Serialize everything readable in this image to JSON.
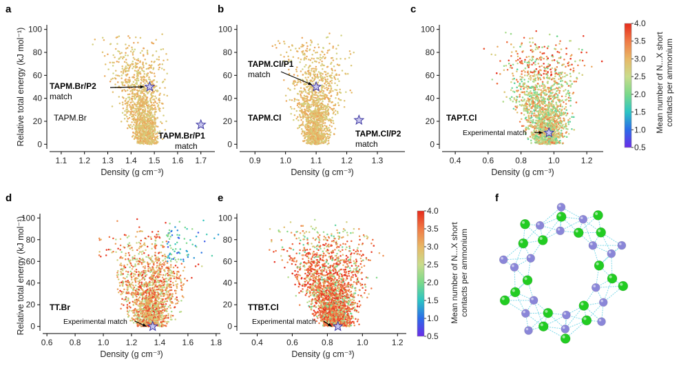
{
  "figure": {
    "panel_letters": [
      "a",
      "b",
      "c",
      "d",
      "e",
      "f"
    ],
    "colorbar": {
      "label_line1": "Mean number of N...X short",
      "label_line2": "contacts per ammonium",
      "ticks": [
        "4.0",
        "3.5",
        "3.0",
        "2.5",
        "2.0",
        "1.5",
        "1.0",
        "0.5"
      ],
      "min": 0.5,
      "max": 4.0,
      "colors": [
        "#6a2ce8",
        "#2c6be8",
        "#2cc4c4",
        "#7ad98a",
        "#c9dc8c",
        "#e8b866",
        "#f07a45",
        "#e62b1c"
      ]
    },
    "molecule_colors": {
      "green": "#22cc22",
      "purple": "#8a86d8",
      "bond": "#7ad8e8"
    }
  },
  "chart_data": [
    {
      "panel": "a",
      "type": "scatter",
      "title": "TAPM.Br",
      "xlabel": "Density (g cm⁻³)",
      "ylabel": "Relative total energy (kJ mol⁻¹)",
      "xlim": [
        1.05,
        1.76
      ],
      "ylim": [
        -4,
        104
      ],
      "xticks": [
        1.1,
        1.2,
        1.3,
        1.4,
        1.5,
        1.6,
        1.7
      ],
      "xtick_labels": [
        "1.1",
        "1.2",
        "1.3",
        "1.4",
        "1.5",
        "1.6",
        "1.7"
      ],
      "yticks": [
        0,
        20,
        40,
        60,
        80,
        100
      ],
      "ytick_labels": [
        "0",
        "20",
        "40",
        "60",
        "80",
        "100"
      ],
      "cloud": {
        "x_center": 1.4,
        "x_spread": 0.35,
        "min_energy_x": 1.47,
        "point_count": 1400
      },
      "markers": [
        {
          "name": "TAPM.Br/P2",
          "x": 1.48,
          "y": 50,
          "label_line1": "TAPM.Br/P2",
          "label_line2": "match"
        },
        {
          "name": "TAPM.Br/P1",
          "x": 1.7,
          "y": 17,
          "label_line1": "TAPM.Br/P1",
          "label_line2": "match"
        }
      ],
      "label": "TAPM.Br"
    },
    {
      "panel": "b",
      "type": "scatter",
      "title": "TAPM.Cl",
      "xlabel": "Density (g cm⁻³)",
      "ylabel": "",
      "xlim": [
        0.85,
        1.39
      ],
      "ylim": [
        -4,
        104
      ],
      "xticks": [
        0.9,
        1.0,
        1.1,
        1.2,
        1.3
      ],
      "xtick_labels": [
        "0.9",
        "1.0",
        "1.1",
        "1.2",
        "1.3"
      ],
      "yticks": [
        0,
        20,
        40,
        60,
        80,
        100
      ],
      "ytick_labels": [
        "0",
        "20",
        "40",
        "60",
        "80",
        "100"
      ],
      "cloud": {
        "x_center": 1.1,
        "x_spread": 0.3,
        "min_energy_x": 1.1,
        "point_count": 1400
      },
      "markers": [
        {
          "name": "TAPM.Cl/P1",
          "x": 1.1,
          "y": 50,
          "label_line1": "TAPM.Cl/P1",
          "label_line2": "match"
        },
        {
          "name": "TAPM.Cl/P2",
          "x": 1.24,
          "y": 21,
          "label_line1": "TAPM.Cl/P2",
          "label_line2": "match"
        }
      ],
      "label": "TAPM.Cl"
    },
    {
      "panel": "c",
      "type": "scatter",
      "title": "TAPT.Cl",
      "xlabel": "Density (g cm⁻³)",
      "ylabel": "",
      "xlim": [
        0.32,
        1.3
      ],
      "ylim": [
        -4,
        104
      ],
      "xticks": [
        0.4,
        0.6,
        0.8,
        1.0,
        1.2
      ],
      "xtick_labels": [
        "0.4",
        "0.6",
        "0.8",
        "1.0",
        "1.2"
      ],
      "yticks": [
        0,
        20,
        40,
        60,
        80,
        100
      ],
      "ytick_labels": [
        "0",
        "20",
        "40",
        "60",
        "80",
        "100"
      ],
      "cloud": {
        "x_center": 0.9,
        "x_spread": 0.7,
        "min_energy_x": 0.96,
        "point_count": 2600
      },
      "markers": [
        {
          "name": "Experimental match",
          "x": 0.97,
          "y": 10,
          "label_line1": "Experimental match",
          "label_line2": ""
        }
      ],
      "label": "TAPT.Cl"
    },
    {
      "panel": "d",
      "type": "scatter",
      "title": "TT.Br",
      "xlabel": "Density (g cm⁻³)",
      "ylabel": "Relative total energy (kJ mol⁻¹)",
      "xlim": [
        0.57,
        1.83
      ],
      "ylim": [
        -4,
        104
      ],
      "xticks": [
        0.6,
        0.8,
        1.0,
        1.2,
        1.4,
        1.6,
        1.8
      ],
      "xtick_labels": [
        "0.6",
        "0.8",
        "1.0",
        "1.2",
        "1.4",
        "1.6",
        "1.8"
      ],
      "yticks": [
        0,
        20,
        40,
        60,
        80,
        100
      ],
      "ytick_labels": [
        "0",
        "20",
        "40",
        "60",
        "80",
        "100"
      ],
      "cloud": {
        "x_center": 1.35,
        "x_spread": 0.9,
        "min_energy_x": 1.34,
        "point_count": 1800
      },
      "markers": [
        {
          "name": "Experimental match",
          "x": 1.35,
          "y": 0,
          "label_line1": "Experimental match",
          "label_line2": ""
        }
      ],
      "label": "TT.Br"
    },
    {
      "panel": "e",
      "type": "scatter",
      "title": "TTBT.Cl",
      "xlabel": "Density (g cm⁻³)",
      "ylabel": "",
      "xlim": [
        0.3,
        1.25
      ],
      "ylim": [
        -4,
        104
      ],
      "xticks": [
        0.4,
        0.6,
        0.8,
        1.0,
        1.2
      ],
      "xtick_labels": [
        "0.4",
        "0.6",
        "0.8",
        "1.0",
        "1.2"
      ],
      "yticks": [
        0,
        20,
        40,
        60,
        80,
        100
      ],
      "ytick_labels": [
        "0",
        "20",
        "40",
        "60",
        "80",
        "100"
      ],
      "cloud": {
        "x_center": 0.75,
        "x_spread": 0.7,
        "min_energy_x": 0.86,
        "point_count": 2400
      },
      "markers": [
        {
          "name": "Experimental match",
          "x": 0.86,
          "y": 0,
          "label_line1": "Experimental match",
          "label_line2": ""
        }
      ],
      "label": "TTBT.Cl"
    }
  ]
}
